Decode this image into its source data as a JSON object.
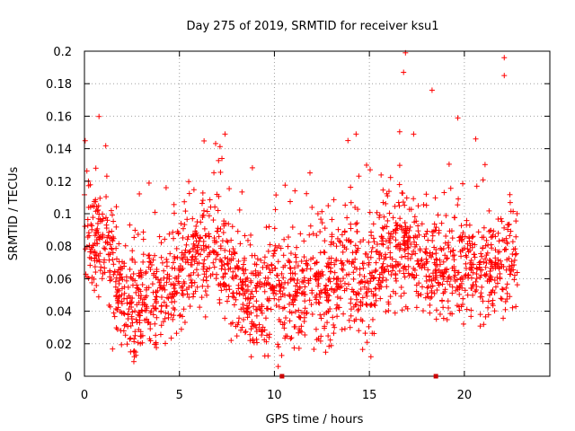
{
  "chart_data": {
    "type": "scatter",
    "title": "Day 275 of 2019, SRMTID for receiver ksu1",
    "xlabel": "GPS time / hours",
    "ylabel": "SRMTID / TECUs",
    "xlim": [
      0,
      24.5
    ],
    "ylim": [
      0,
      0.2
    ],
    "x_ticks": [
      0,
      5,
      10,
      15,
      20
    ],
    "y_ticks": [
      0,
      0.02,
      0.04,
      0.06,
      0.08,
      0.1,
      0.12,
      0.14,
      0.16,
      0.18,
      0.2
    ],
    "x_tick_labels": [
      "0",
      "5",
      "10",
      "15",
      "20"
    ],
    "y_tick_labels": [
      "0",
      "0.02",
      "0.04",
      "0.06",
      "0.08",
      "0.1",
      "0.12",
      "0.14",
      "0.16",
      "0.18",
      "0.2"
    ],
    "grid": true,
    "marker": "+",
    "color": "#ff0000",
    "data_gap_markers_x": [
      10.4,
      18.5
    ],
    "series_profile": {
      "name": "SRMTID",
      "x_range": [
        0,
        22.8
      ],
      "hourly_typical": [
        [
          0,
          0.08
        ],
        [
          1,
          0.085
        ],
        [
          2,
          0.045
        ],
        [
          3,
          0.045
        ],
        [
          4,
          0.05
        ],
        [
          5,
          0.06
        ],
        [
          6,
          0.075
        ],
        [
          7,
          0.08
        ],
        [
          8,
          0.055
        ],
        [
          9,
          0.05
        ],
        [
          10,
          0.055
        ],
        [
          11,
          0.05
        ],
        [
          12,
          0.055
        ],
        [
          13,
          0.06
        ],
        [
          14,
          0.065
        ],
        [
          15,
          0.055
        ],
        [
          16,
          0.075
        ],
        [
          17,
          0.085
        ],
        [
          18,
          0.07
        ],
        [
          19,
          0.065
        ],
        [
          20,
          0.07
        ],
        [
          21,
          0.065
        ],
        [
          22,
          0.07
        ]
      ],
      "approx_point_count": 2000
    },
    "notable_points": [
      [
        0.6,
        0.128
      ],
      [
        2.6,
        0.009
      ],
      [
        7.4,
        0.149
      ],
      [
        10.2,
        0.006
      ],
      [
        14.3,
        0.149
      ],
      [
        16.9,
        0.199
      ],
      [
        16.8,
        0.187
      ],
      [
        18.3,
        0.176
      ],
      [
        22.1,
        0.196
      ],
      [
        22.1,
        0.185
      ],
      [
        20.6,
        0.146
      ],
      [
        4.3,
        0.116
      ]
    ]
  }
}
